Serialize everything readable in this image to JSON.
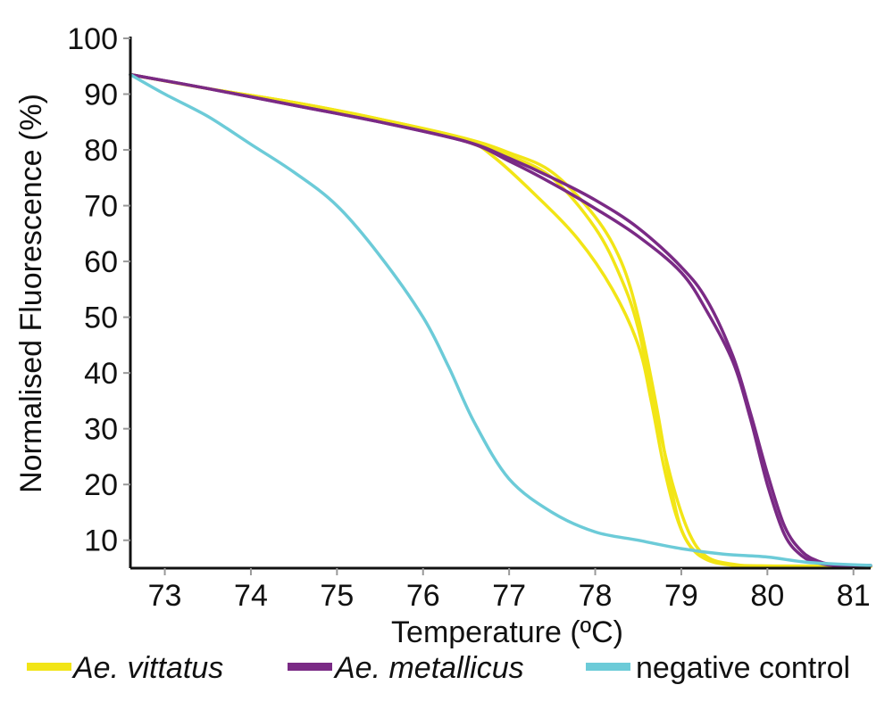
{
  "chart_data": {
    "type": "line",
    "title": "",
    "xlabel": "Temperature (ºC)",
    "ylabel": "Normalised Fluorescence (%)",
    "xlim": [
      72.6,
      81.2
    ],
    "ylim": [
      5,
      100
    ],
    "xticks": [
      73,
      74,
      75,
      76,
      77,
      78,
      79,
      80,
      81
    ],
    "yticks": [
      10,
      20,
      30,
      40,
      50,
      60,
      70,
      80,
      90,
      100
    ],
    "grid": false,
    "legend_position": "bottom",
    "colors": {
      "vittatus": "#f2e516",
      "metallicus": "#7a2a85",
      "control": "#6ccbd8"
    },
    "legend": [
      {
        "label": "Ae. vittatus",
        "color": "#f2e516",
        "italic": true
      },
      {
        "label": "Ae. metallicus",
        "color": "#7a2a85",
        "italic": true
      },
      {
        "label": "negative control",
        "color": "#6ccbd8",
        "italic": false
      }
    ],
    "series": [
      {
        "group": "vittatus",
        "color": "#f2e516",
        "x": [
          72.6,
          73.5,
          74.5,
          75.5,
          76.5,
          77.0,
          77.5,
          78.0,
          78.3,
          78.5,
          78.7,
          78.85,
          79.0,
          79.2,
          79.5,
          80.0,
          81.2
        ],
        "y": [
          93.5,
          91,
          88.5,
          85.5,
          82,
          79.5,
          76,
          68,
          60,
          50,
          35,
          22,
          12,
          7.5,
          5.8,
          5.4,
          5.4
        ]
      },
      {
        "group": "vittatus",
        "color": "#f2e516",
        "x": [
          72.6,
          73.5,
          74.5,
          75.5,
          76.5,
          77.0,
          77.5,
          78.0,
          78.3,
          78.5,
          78.7,
          78.9,
          79.1,
          79.3,
          79.6,
          80.0,
          81.2
        ],
        "y": [
          93.5,
          91,
          88.5,
          85.5,
          82,
          79,
          75,
          66,
          57,
          48,
          33,
          20,
          11,
          7,
          5.7,
          5.3,
          5.3
        ]
      },
      {
        "group": "vittatus",
        "color": "#f2e516",
        "x": [
          72.6,
          73.5,
          74.5,
          75.5,
          76.5,
          76.8,
          77.3,
          77.8,
          78.2,
          78.5,
          78.65,
          78.8,
          78.95,
          79.1,
          79.3,
          79.6,
          80.0,
          81.2
        ],
        "y": [
          93.5,
          91,
          88.5,
          85.5,
          81.5,
          79,
          72,
          64,
          55,
          45,
          35,
          23,
          14,
          9,
          6.5,
          5.5,
          5.3,
          5.3
        ]
      },
      {
        "group": "metallicus",
        "color": "#7a2a85",
        "x": [
          72.6,
          73.5,
          74.5,
          75.5,
          76.5,
          77.0,
          77.5,
          78.0,
          78.5,
          79.0,
          79.3,
          79.6,
          79.8,
          80.0,
          80.2,
          80.4,
          80.6,
          80.8,
          81.2
        ],
        "y": [
          93.5,
          91,
          88,
          85,
          81.5,
          78.5,
          75,
          71,
          66,
          59,
          53,
          43,
          33,
          22,
          12.5,
          8,
          6.2,
          5.6,
          5.5
        ]
      },
      {
        "group": "metallicus",
        "color": "#7a2a85",
        "x": [
          72.6,
          73.5,
          74.5,
          75.5,
          76.5,
          77.0,
          77.5,
          78.0,
          78.5,
          79.0,
          79.3,
          79.6,
          79.8,
          80.0,
          80.2,
          80.4,
          80.6,
          80.8,
          81.2
        ],
        "y": [
          93.5,
          91,
          88,
          85,
          81.5,
          78,
          74,
          69.5,
          64.5,
          58,
          51,
          42,
          32,
          20,
          11,
          7.2,
          5.9,
          5.5,
          5.4
        ]
      },
      {
        "group": "control",
        "color": "#6ccbd8",
        "x": [
          72.6,
          73.0,
          73.5,
          74.0,
          74.5,
          75.0,
          75.5,
          76.0,
          76.3,
          76.6,
          77.0,
          77.5,
          78.0,
          78.5,
          79.0,
          79.5,
          80.0,
          80.5,
          81.2
        ],
        "y": [
          93.5,
          90,
          86,
          81,
          76,
          70,
          61,
          50,
          41,
          31,
          21,
          15,
          11.5,
          10,
          8.5,
          7.5,
          7,
          6,
          5.5
        ]
      }
    ]
  }
}
